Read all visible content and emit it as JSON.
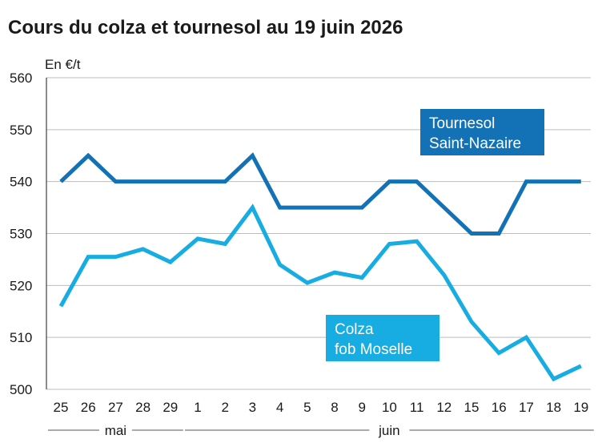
{
  "chart_data": {
    "type": "line",
    "title": "Cours du colza et tournesol au 19 juin 2026",
    "ylabel": "En €/t",
    "ylim": [
      500,
      560
    ],
    "yticks": [
      500,
      510,
      520,
      530,
      540,
      550,
      560
    ],
    "grid": true,
    "categories": [
      "25",
      "26",
      "27",
      "28",
      "29",
      "1",
      "2",
      "3",
      "4",
      "5",
      "8",
      "9",
      "10",
      "11",
      "12",
      "15",
      "16",
      "17",
      "18",
      "19"
    ],
    "months": [
      {
        "label": "mai",
        "from": 0,
        "to": 4
      },
      {
        "label": "juin",
        "from": 5,
        "to": 19
      }
    ],
    "series": [
      {
        "name_lines": [
          "Tournesol",
          "Saint-Nazaire"
        ],
        "color": "#1372b5",
        "values": [
          540,
          545,
          540,
          540,
          540,
          540,
          540,
          545,
          535,
          535,
          535,
          535,
          540,
          540,
          535,
          530,
          530,
          540,
          540,
          540
        ]
      },
      {
        "name_lines": [
          "Colza",
          "fob Moselle"
        ],
        "color": "#17ace2",
        "values": [
          516,
          525.5,
          525.5,
          527,
          524.5,
          529,
          528,
          535,
          524,
          520.5,
          522.5,
          521.5,
          528,
          528.5,
          522,
          513,
          507,
          510,
          502,
          504.5
        ]
      }
    ]
  }
}
